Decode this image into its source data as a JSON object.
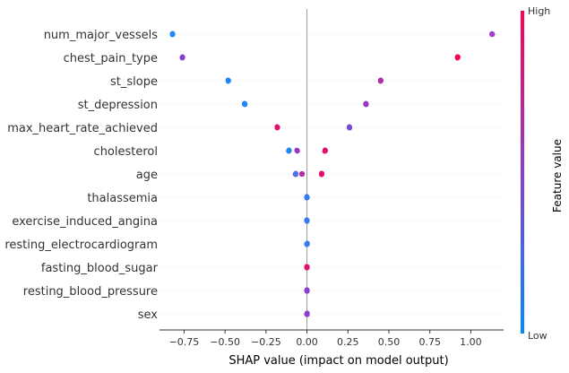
{
  "chart_data": {
    "type": "scatter",
    "title": "",
    "xlabel": "SHAP value (impact on model output)",
    "xlim": [
      -0.9,
      1.2
    ],
    "xticks": [
      -0.75,
      -0.5,
      -0.25,
      0.0,
      0.25,
      0.5,
      0.75,
      1.0
    ],
    "xtick_labels": [
      "−0.75",
      "−0.50",
      "−0.25",
      "0.00",
      "0.25",
      "0.50",
      "0.75",
      "1.00"
    ],
    "colorbar": {
      "title": "Feature value",
      "high_label": "High",
      "low_label": "Low",
      "low_color": "#008bfb",
      "high_color": "#ff0052"
    },
    "features": [
      {
        "name": "num_major_vessels",
        "clusters": [
          {
            "x": -0.82,
            "spread": 0.035,
            "color": "#1e88f7"
          },
          {
            "x": 1.13,
            "spread": 0.025,
            "color": "#a040c8"
          }
        ]
      },
      {
        "name": "chest_pain_type",
        "clusters": [
          {
            "x": -0.76,
            "spread": 0.035,
            "color": "#8a3fd0"
          },
          {
            "x": 0.92,
            "spread": 0.035,
            "color": "#ff0052"
          }
        ]
      },
      {
        "name": "st_slope",
        "clusters": [
          {
            "x": -0.48,
            "spread": 0.035,
            "color": "#1e88f7"
          },
          {
            "x": 0.45,
            "spread": 0.035,
            "color": "#b02ea8"
          }
        ]
      },
      {
        "name": "st_depression",
        "clusters": [
          {
            "x": -0.38,
            "spread": 0.035,
            "color": "#1e88f7"
          },
          {
            "x": 0.36,
            "spread": 0.035,
            "color": "#9a38c0"
          }
        ]
      },
      {
        "name": "max_heart_rate_achieved",
        "clusters": [
          {
            "x": -0.18,
            "spread": 0.035,
            "color": "#e2106e"
          },
          {
            "x": 0.26,
            "spread": 0.035,
            "color": "#7a48d8"
          }
        ]
      },
      {
        "name": "cholesterol",
        "clusters": [
          {
            "x": -0.11,
            "spread": 0.035,
            "color": "#1e88f7"
          },
          {
            "x": -0.06,
            "spread": 0.025,
            "color": "#9a38c0"
          },
          {
            "x": 0.11,
            "spread": 0.035,
            "color": "#e2106e"
          }
        ]
      },
      {
        "name": "age",
        "clusters": [
          {
            "x": -0.07,
            "spread": 0.035,
            "color": "#5070f0"
          },
          {
            "x": -0.03,
            "spread": 0.02,
            "color": "#b02ea8"
          },
          {
            "x": 0.09,
            "spread": 0.035,
            "color": "#e2106e"
          }
        ]
      },
      {
        "name": "thalassemia",
        "clusters": [
          {
            "x": 0.0,
            "spread": 0.04,
            "color": "#3a78f2"
          }
        ]
      },
      {
        "name": "exercise_induced_angina",
        "clusters": [
          {
            "x": 0.0,
            "spread": 0.04,
            "color": "#3a78f2"
          }
        ]
      },
      {
        "name": "resting_electrocardiogram",
        "clusters": [
          {
            "x": 0.0,
            "spread": 0.04,
            "color": "#3a78f2"
          }
        ]
      },
      {
        "name": "fasting_blood_sugar",
        "clusters": [
          {
            "x": 0.0,
            "spread": 0.04,
            "color": "#e2106e"
          }
        ]
      },
      {
        "name": "resting_blood_pressure",
        "clusters": [
          {
            "x": 0.0,
            "spread": 0.04,
            "color": "#8a3fd0"
          }
        ]
      },
      {
        "name": "sex",
        "clusters": [
          {
            "x": 0.0,
            "spread": 0.04,
            "color": "#8a3fd0"
          }
        ]
      }
    ]
  }
}
